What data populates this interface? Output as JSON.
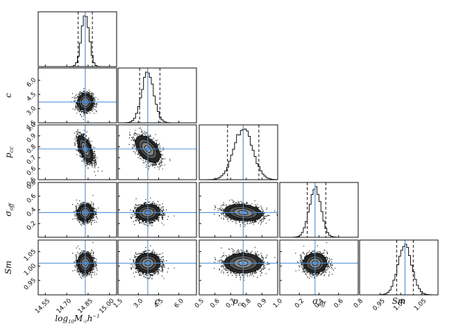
{
  "chart_data": {
    "type": "corner",
    "parameters": [
      {
        "name": "log10_M",
        "label": "log₁₀M☉h⁻¹",
        "truth": 14.83,
        "quantiles": [
          14.78,
          14.83,
          14.88
        ],
        "range": [
          14.5,
          15.05
        ],
        "ticks": [
          14.55,
          14.7,
          14.85,
          15.0
        ],
        "tick_labels": [
          "14.55",
          "14.70",
          "14.85",
          "15.00"
        ],
        "sigma": 0.027
      },
      {
        "name": "c",
        "label": "c",
        "truth": 3.7,
        "quantiles": [
          3.1,
          3.7,
          4.6
        ],
        "range": [
          1.5,
          7.3
        ],
        "ticks": [
          1.5,
          3.0,
          4.5,
          6.0
        ],
        "tick_labels": [
          "1.5",
          "3.0",
          "4.5",
          "6.0"
        ],
        "sigma": 0.45
      },
      {
        "name": "p_cc",
        "label": "pcc",
        "truth": 0.78,
        "quantiles": [
          0.68,
          0.78,
          0.88
        ],
        "range": [
          0.5,
          1.0
        ],
        "ticks": [
          0.5,
          0.6,
          0.7,
          0.8,
          0.9,
          1.0
        ],
        "tick_labels": [
          "0.5",
          "0.6",
          "0.7",
          "0.8",
          "0.9",
          "1.0"
        ],
        "sigma": 0.06
      },
      {
        "name": "sigma_off",
        "label": "σoff",
        "truth": 0.36,
        "quantiles": [
          0.28,
          0.36,
          0.47
        ],
        "range": [
          0.0,
          0.8
        ],
        "ticks": [
          0.2,
          0.4,
          0.6,
          0.8
        ],
        "tick_labels": [
          "0.2",
          "0.4",
          "0.6",
          "0.8"
        ],
        "sigma": 0.06
      },
      {
        "name": "Sm",
        "label": "Sm",
        "truth": 1.01,
        "quantiles": [
          0.99,
          1.01,
          1.03
        ],
        "range": [
          0.9,
          1.09
        ],
        "ticks": [
          0.95,
          1.0,
          1.05
        ],
        "tick_labels": [
          "0.95",
          "1.00",
          "1.05"
        ],
        "sigma": 0.017
      }
    ],
    "correlations": [
      {
        "pair": [
          "c",
          "log10_M"
        ],
        "rho": 0.0
      },
      {
        "pair": [
          "p_cc",
          "log10_M"
        ],
        "rho": -0.6
      },
      {
        "pair": [
          "p_cc",
          "c"
        ],
        "rho": -0.5
      },
      {
        "pair": [
          "sigma_off",
          "log10_M"
        ],
        "rho": 0.0
      },
      {
        "pair": [
          "sigma_off",
          "c"
        ],
        "rho": 0.05
      },
      {
        "pair": [
          "sigma_off",
          "p_cc"
        ],
        "rho": -0.2
      },
      {
        "pair": [
          "Sm",
          "log10_M"
        ],
        "rho": 0.0
      },
      {
        "pair": [
          "Sm",
          "c"
        ],
        "rho": 0.0
      },
      {
        "pair": [
          "Sm",
          "p_cc"
        ],
        "rho": 0.0
      },
      {
        "pair": [
          "Sm",
          "sigma_off"
        ],
        "rho": 0.0
      }
    ],
    "truth_line_color": "#4a90d9",
    "contour_levels": [
      0.5,
      1.0,
      1.5,
      2.0
    ]
  }
}
